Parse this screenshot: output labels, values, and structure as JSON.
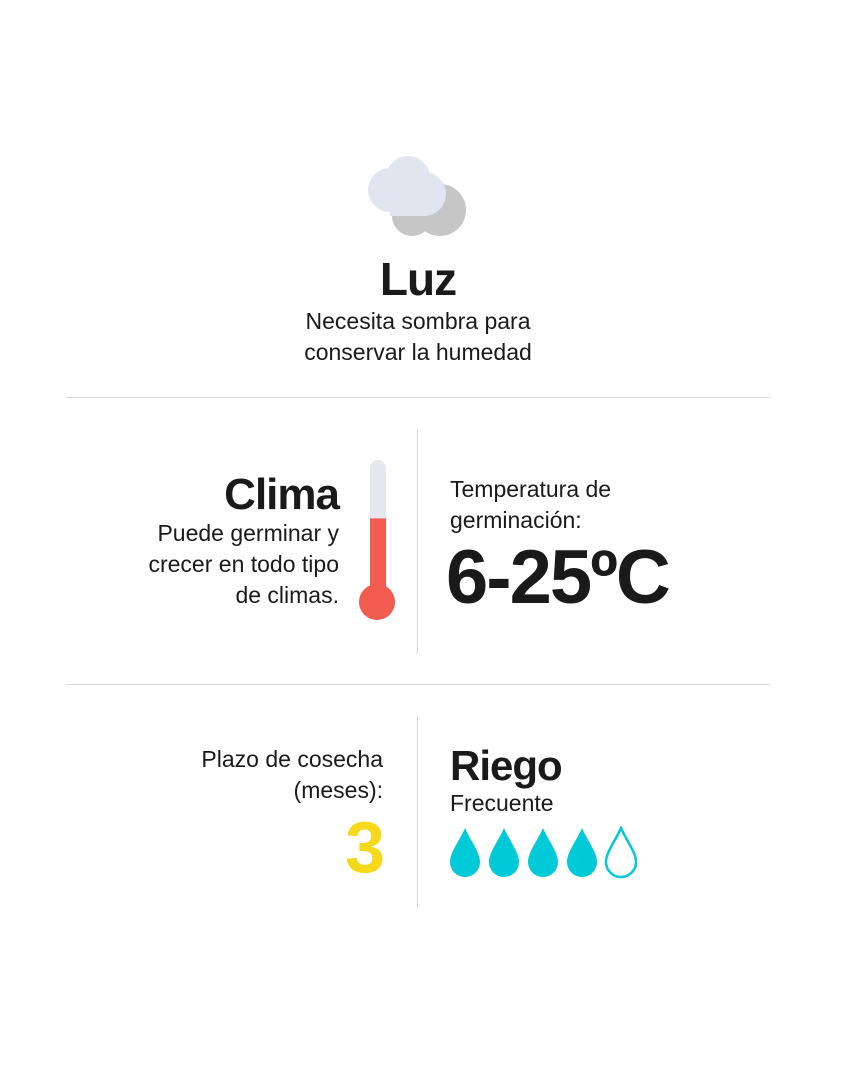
{
  "luz": {
    "title": "Luz",
    "description_line1": "Necesita sombra para",
    "description_line2": "conservar la humedad",
    "icon": "cloud-icon"
  },
  "clima": {
    "title": "Clima",
    "description_line1": "Puede germinar y",
    "description_line2": "crecer en todo tipo",
    "description_line3": "de climas.",
    "icon": "thermometer-icon",
    "thermometer_fill_fraction": 0.6
  },
  "temperatura": {
    "label_line1": "Temperatura de",
    "label_line2": "germinación:",
    "value": "6-25ºC"
  },
  "plazo": {
    "label_line1": "Plazo de cosecha",
    "label_line2": "(meses):",
    "value": "3"
  },
  "riego": {
    "title": "Riego",
    "subtitle": "Frecuente",
    "level": 4,
    "max": 5,
    "icon": "water-drop-icon"
  },
  "colors": {
    "text": "#1a1a1a",
    "divider": "#d9d9d9",
    "cloud_front": "#e2e4f0",
    "cloud_back": "#c6c6c6",
    "thermometer_fill": "#f25c4f",
    "thermometer_empty": "#e6e6ee",
    "harvest_yellow": "#f7d91c",
    "drop_cyan": "#00c9d8"
  }
}
